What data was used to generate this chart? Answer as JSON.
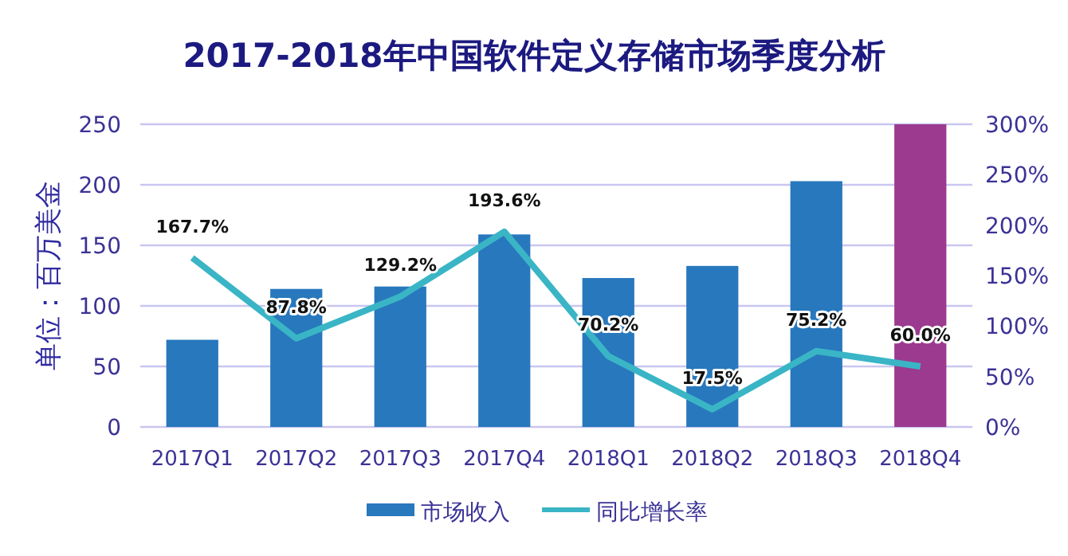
{
  "chart_data": {
    "type": "bar",
    "title": "2017-2018年中国软件定义存储市场季度分析",
    "ylabel": "单位：百万美金",
    "categories": [
      "2017Q1",
      "2017Q2",
      "2017Q3",
      "2017Q4",
      "2018Q1",
      "2018Q2",
      "2018Q3",
      "2018Q4"
    ],
    "series": [
      {
        "name": "市场收入",
        "color": "#2878bd",
        "colors": [
          "#2878bd",
          "#2878bd",
          "#2878bd",
          "#2878bd",
          "#2878bd",
          "#2878bd",
          "#2878bd",
          "#9b3a8e"
        ],
        "values": [
          72,
          114,
          116,
          159,
          123,
          133,
          203,
          250
        ]
      },
      {
        "name": "同比增长率",
        "type": "line",
        "axis": "y2",
        "color": "#3ab5c6",
        "values": [
          167.7,
          87.8,
          129.2,
          193.6,
          70.2,
          17.5,
          75.2,
          60.0
        ],
        "value_labels": [
          "167.7%",
          "87.8%",
          "129.2%",
          "193.6%",
          "70.2%",
          "17.5%",
          "75.2%",
          "60.0%"
        ]
      }
    ],
    "ylim": [
      0,
      250
    ],
    "yticks": [
      0,
      50,
      100,
      150,
      200,
      250
    ],
    "y2lim": [
      0,
      300
    ],
    "y2ticks": [
      {
        "value": 0,
        "label": "0%"
      },
      {
        "value": 50,
        "label": "50%"
      },
      {
        "value": 100,
        "label": "100%"
      },
      {
        "value": 150,
        "label": "150%"
      },
      {
        "value": 200,
        "label": "200%"
      },
      {
        "value": 250,
        "label": "250%"
      },
      {
        "value": 300,
        "label": "300%"
      }
    ],
    "grid": "y",
    "legend": "bottom"
  }
}
